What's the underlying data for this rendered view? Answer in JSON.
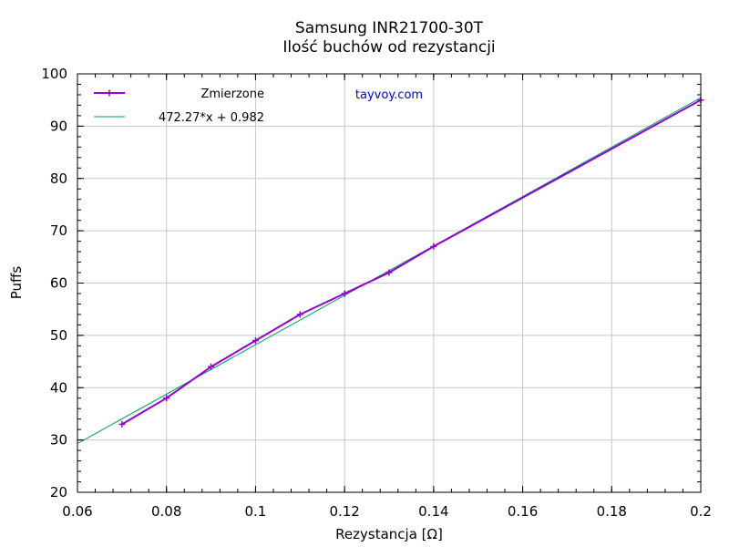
{
  "chart_data": {
    "type": "line",
    "title": "Samsung INR21700-30T",
    "subtitle": "Ilość buchów od rezystancji",
    "xlabel": "Rezystancja [Ω]",
    "ylabel": "Puffs",
    "xlim": [
      0.06,
      0.2
    ],
    "ylim": [
      20,
      100
    ],
    "xticks": [
      0.06,
      0.08,
      0.1,
      0.12,
      0.14,
      0.16,
      0.18,
      0.2
    ],
    "xtick_labels": [
      "0.06",
      "0.08",
      "0.1",
      "0.12",
      "0.14",
      "0.16",
      "0.18",
      "0.2"
    ],
    "yticks": [
      20,
      30,
      40,
      50,
      60,
      70,
      80,
      90,
      100
    ],
    "ytick_labels": [
      "20",
      "30",
      "40",
      "50",
      "60",
      "70",
      "80",
      "90",
      "100"
    ],
    "grid": true,
    "legend_position": "top-left",
    "watermark": "tayvoy.com",
    "series": [
      {
        "name": "Zmierzone",
        "color": "#9400d3",
        "marker": "plus",
        "x": [
          0.07,
          0.08,
          0.09,
          0.1,
          0.11,
          0.12,
          0.13,
          0.14,
          0.2
        ],
        "y": [
          33,
          38,
          44,
          49,
          54,
          58,
          62,
          67,
          95
        ]
      },
      {
        "name": "472.27*x + 0.982",
        "color": "#009e73",
        "type": "fit",
        "slope": 472.27,
        "intercept": 0.982,
        "x_range": [
          0.06,
          0.2
        ]
      }
    ]
  }
}
